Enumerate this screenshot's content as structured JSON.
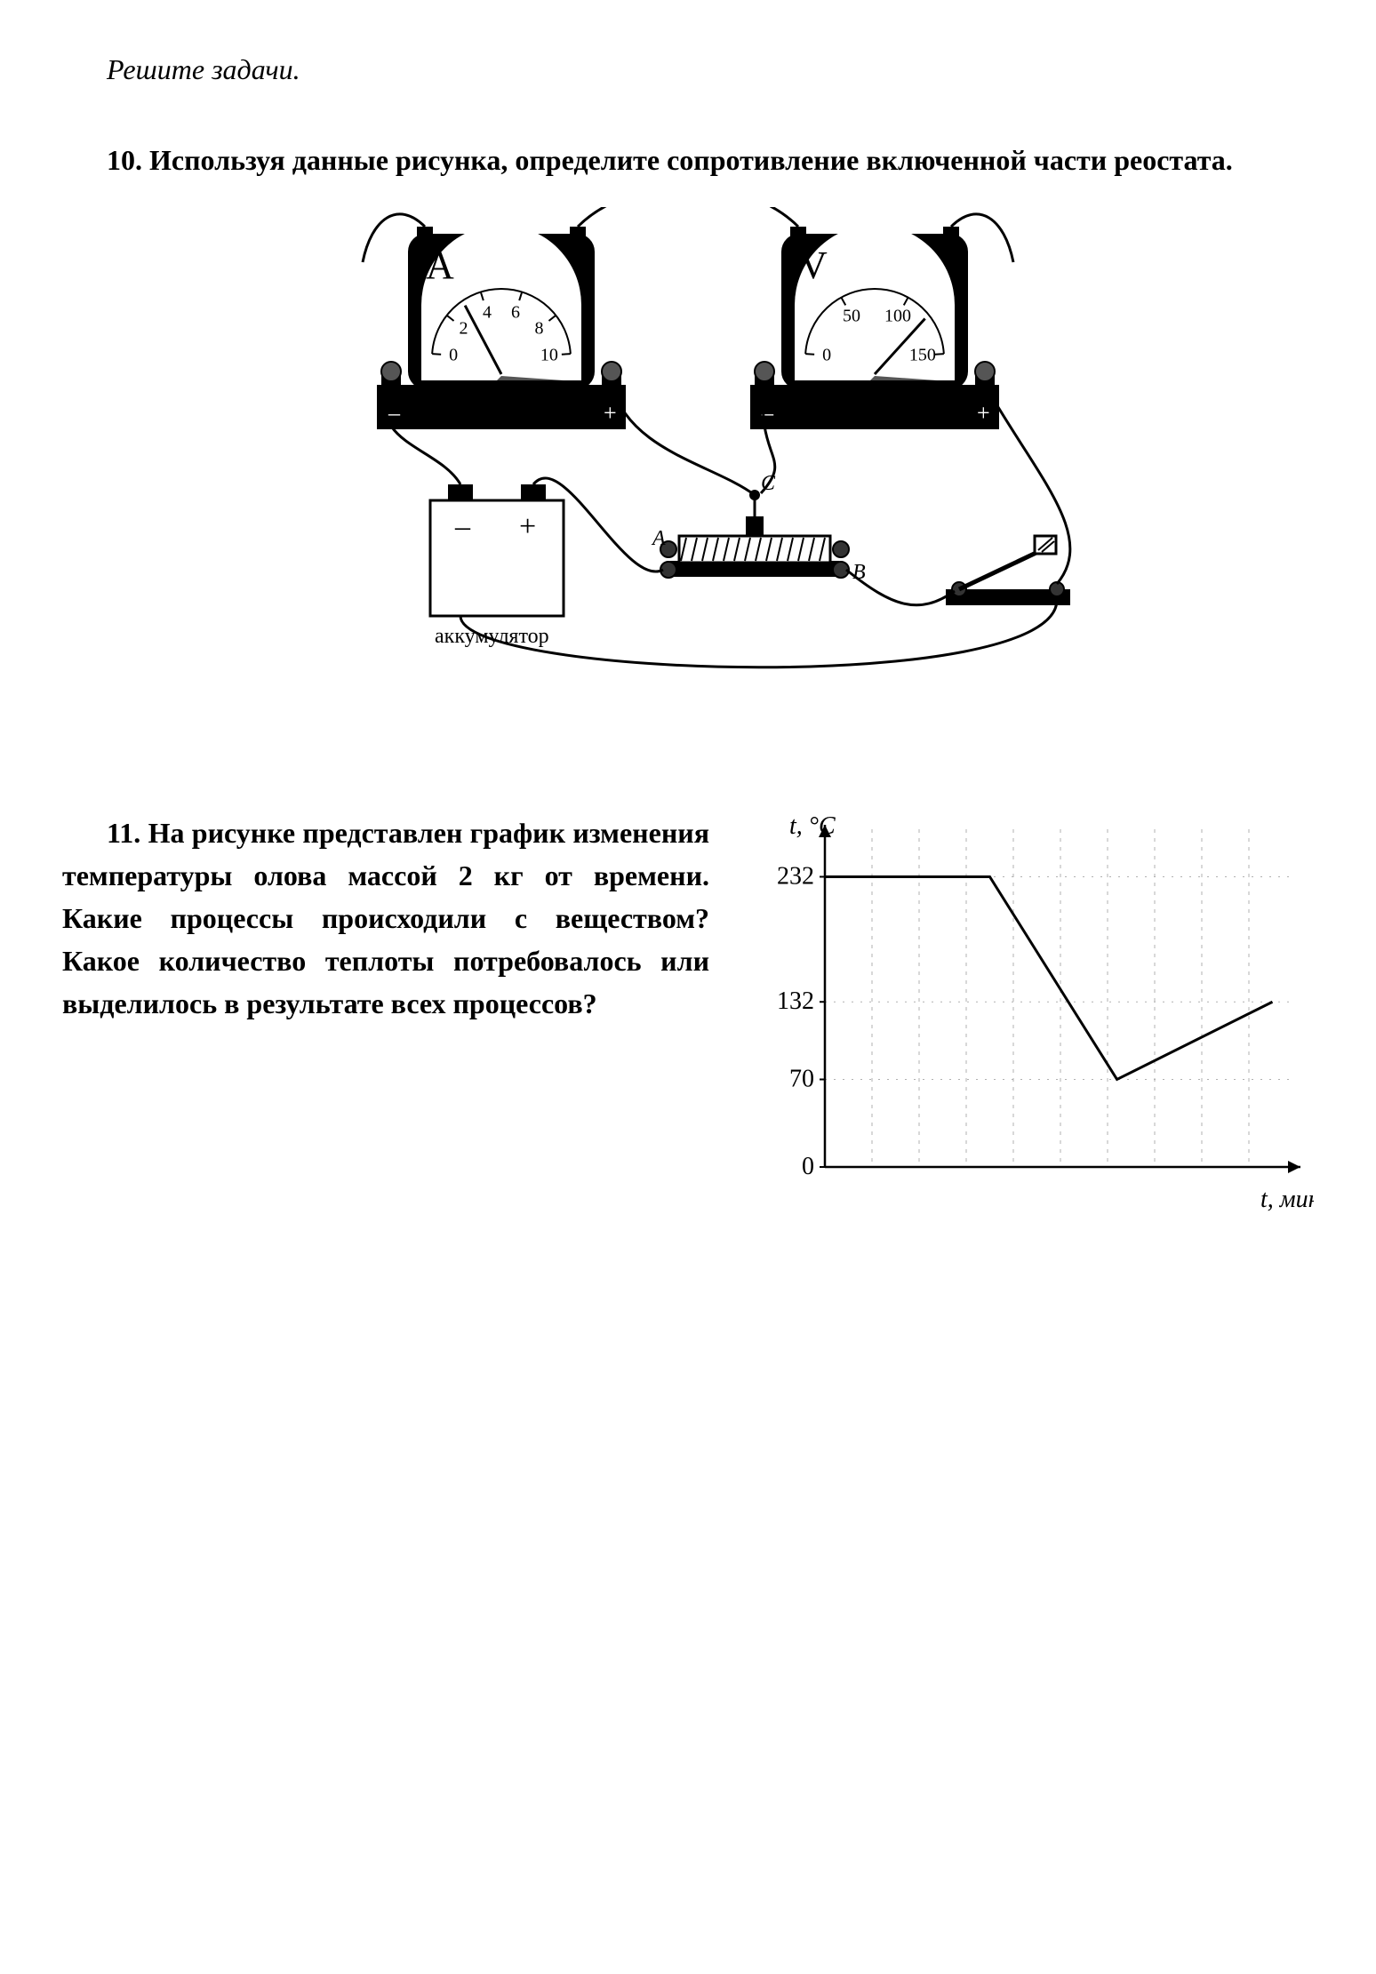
{
  "instruction": "Решите задачи.",
  "p10": {
    "number": "10.",
    "text": "Используя данные рисунка, определите сопротивление включенной части реостата."
  },
  "circuit": {
    "ammeter": {
      "label": "А",
      "ticks": [
        "0",
        "2",
        "4",
        "6",
        "8",
        "10"
      ],
      "needle_value": 3,
      "max": 10
    },
    "voltmeter": {
      "label": "V",
      "ticks": [
        "0",
        "50",
        "100",
        "150"
      ],
      "needle_value": 120,
      "max": 150
    },
    "battery": {
      "minus": "–",
      "plus": "+",
      "caption": "аккумулятор"
    },
    "rheostat": {
      "A": "A",
      "B": "B",
      "C": "C"
    }
  },
  "p11": {
    "number": "11.",
    "text": "На рисунке представлен график изменения температуры олова массой 2 кг от времени. Какие процессы происходили с веществом? Какое количество теплоты потребовалось или выделилось в результате всех процессов?"
  },
  "chart": {
    "type": "line",
    "y_axis_label": "t, °C",
    "x_axis_label": "t, мин",
    "y_ticks": [
      0,
      70,
      132,
      232
    ],
    "y_max": 270,
    "x_max": 10,
    "line_color": "#000000",
    "grid_color": "#b0b0b0",
    "background": "#ffffff",
    "axis_color": "#000000",
    "line_width": 3,
    "x_grid": [
      1,
      2,
      3,
      4,
      5,
      6,
      7,
      8,
      9
    ],
    "points": [
      {
        "x": 0,
        "y": 232
      },
      {
        "x": 3.5,
        "y": 232
      },
      {
        "x": 6.2,
        "y": 70
      },
      {
        "x": 9.5,
        "y": 132
      }
    ]
  }
}
